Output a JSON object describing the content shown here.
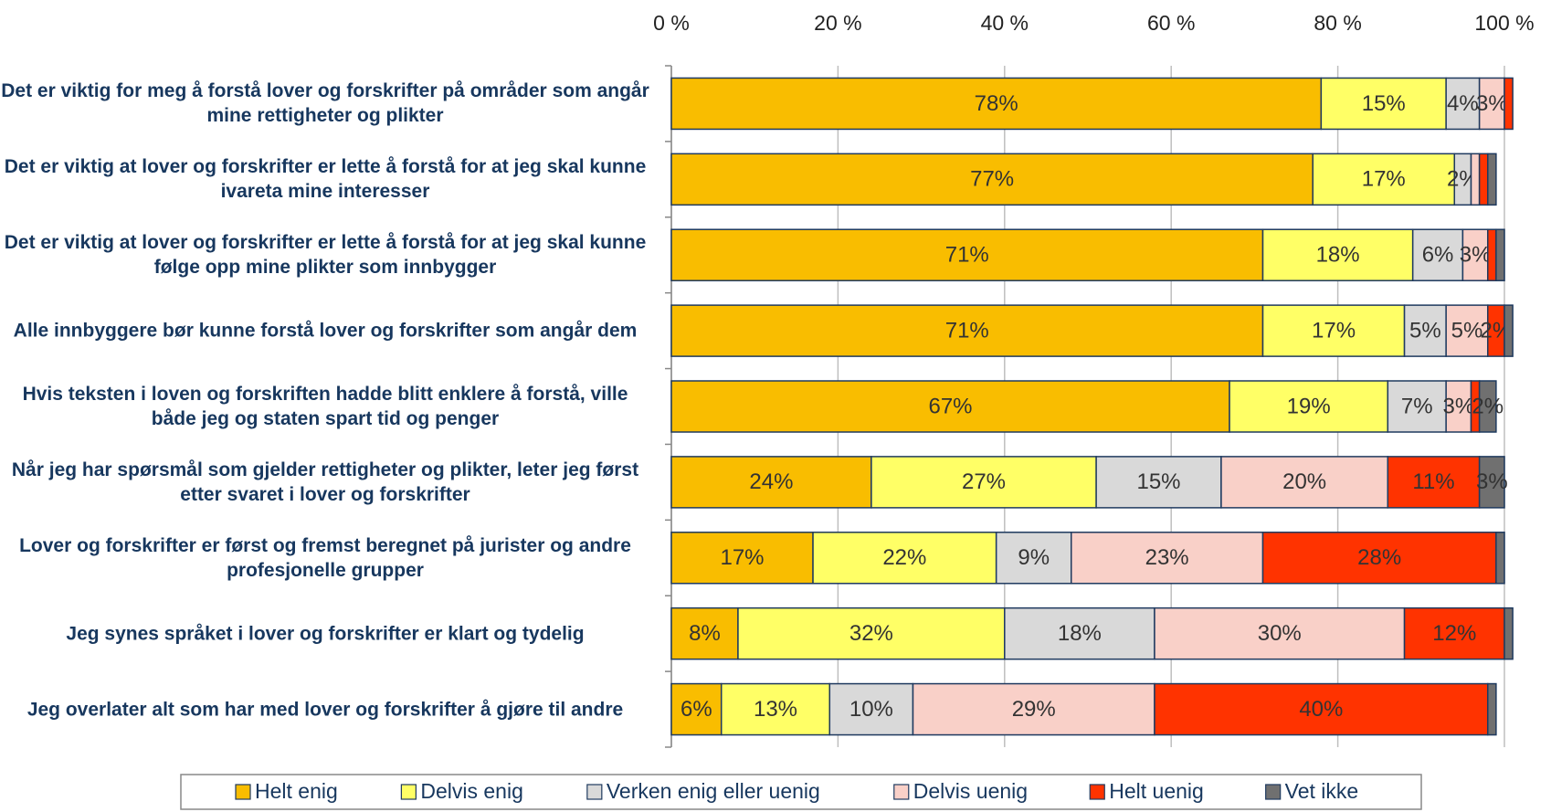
{
  "chart_data": {
    "type": "stacked-barh",
    "categories": [
      "Det er viktig for meg å forstå lover og forskrifter på områder som angår mine rettigheter og plikter",
      "Det er viktig at lover og forskrifter er lette å forstå for at jeg skal kunne ivareta mine interesser",
      "Det er viktig at lover og forskrifter er lette å forstå for at jeg skal kunne følge opp mine plikter som innbygger",
      "Alle innbyggere bør kunne forstå lover og forskrifter som angår dem",
      "Hvis teksten i loven og forskriften hadde blitt enklere å forstå, ville både jeg og staten spart tid og penger",
      "Når jeg har spørsmål som gjelder rettigheter og plikter, leter jeg først etter svaret i lover og forskrifter",
      "Lover og forskrifter er først og fremst beregnet på jurister og andre profesjonelle grupper",
      "Jeg synes språket i lover og forskrifter er klart og tydelig",
      "Jeg overlater alt som har med lover og forskrifter å gjøre til andre"
    ],
    "series": [
      {
        "name": "Helt enig",
        "color": "#f9bd00",
        "values": [
          78,
          77,
          71,
          71,
          67,
          24,
          17,
          8,
          6
        ],
        "value_labels": [
          "78%",
          "77%",
          "71%",
          "71%",
          "67%",
          "24%",
          "17%",
          "8%",
          "6%"
        ]
      },
      {
        "name": "Delvis enig",
        "color": "#ffff66",
        "values": [
          15,
          17,
          18,
          17,
          19,
          27,
          22,
          32,
          13
        ],
        "value_labels": [
          "15%",
          "17%",
          "18%",
          "17%",
          "19%",
          "27%",
          "22%",
          "32%",
          "13%"
        ]
      },
      {
        "name": "Verken enig eller uenig",
        "color": "#d9d9d9",
        "values": [
          4,
          2,
          6,
          5,
          7,
          15,
          9,
          18,
          10
        ],
        "value_labels": [
          "4%",
          "2%",
          "6%",
          "5%",
          "7%",
          "15%",
          "9%",
          "18%",
          "10%"
        ]
      },
      {
        "name": "Delvis uenig",
        "color": "#f9d0c8",
        "values": [
          3,
          1,
          3,
          5,
          3,
          20,
          23,
          30,
          29
        ],
        "value_labels": [
          "3%",
          null,
          "3%",
          "5%",
          "3%",
          "20%",
          "23%",
          "30%",
          "29%"
        ]
      },
      {
        "name": "Helt uenig",
        "color": "#ff3300",
        "values": [
          1,
          1,
          1,
          2,
          1,
          11,
          28,
          12,
          40
        ],
        "value_labels": [
          null,
          null,
          null,
          "2%",
          null,
          "11%",
          "28%",
          "12%",
          "40%"
        ]
      },
      {
        "name": "Vet ikke",
        "color": "#707070",
        "values": [
          0,
          1,
          1,
          1,
          2,
          3,
          1,
          1,
          1
        ],
        "value_labels": [
          null,
          null,
          null,
          null,
          "2%",
          "3%",
          null,
          null,
          null
        ]
      }
    ],
    "xlim": [
      0,
      100
    ],
    "xticks": [
      {
        "value": 0,
        "label": "0 %"
      },
      {
        "value": 20,
        "label": "20 %"
      },
      {
        "value": 40,
        "label": "40 %"
      },
      {
        "value": 60,
        "label": "60 %"
      },
      {
        "value": 80,
        "label": "80 %"
      },
      {
        "value": 100,
        "label": "100 %"
      }
    ],
    "grid": true,
    "legend": "bottom"
  }
}
